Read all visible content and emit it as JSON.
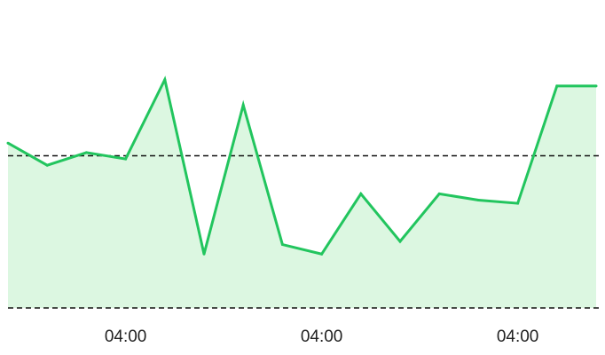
{
  "chart_data": {
    "type": "area",
    "title": "",
    "xlabel": "",
    "ylabel": "",
    "x_tick_labels": [
      "04:00",
      "04:00",
      "04:00"
    ],
    "x_tick_indices": [
      3,
      8,
      13
    ],
    "series": [
      {
        "values": [
          52,
          45,
          49,
          47,
          72,
          17,
          64,
          20,
          17,
          36,
          21,
          36,
          34,
          33,
          70,
          70
        ]
      }
    ],
    "reference_lines": [
      {
        "value": 48,
        "style": "dashed"
      },
      {
        "value": 0,
        "style": "dashed"
      }
    ],
    "ylim": [
      0,
      96
    ],
    "grid": false,
    "legend": "none",
    "colors": {
      "line": "#22c55e",
      "fill": "#dcf7e1",
      "reference": "#111111"
    }
  }
}
